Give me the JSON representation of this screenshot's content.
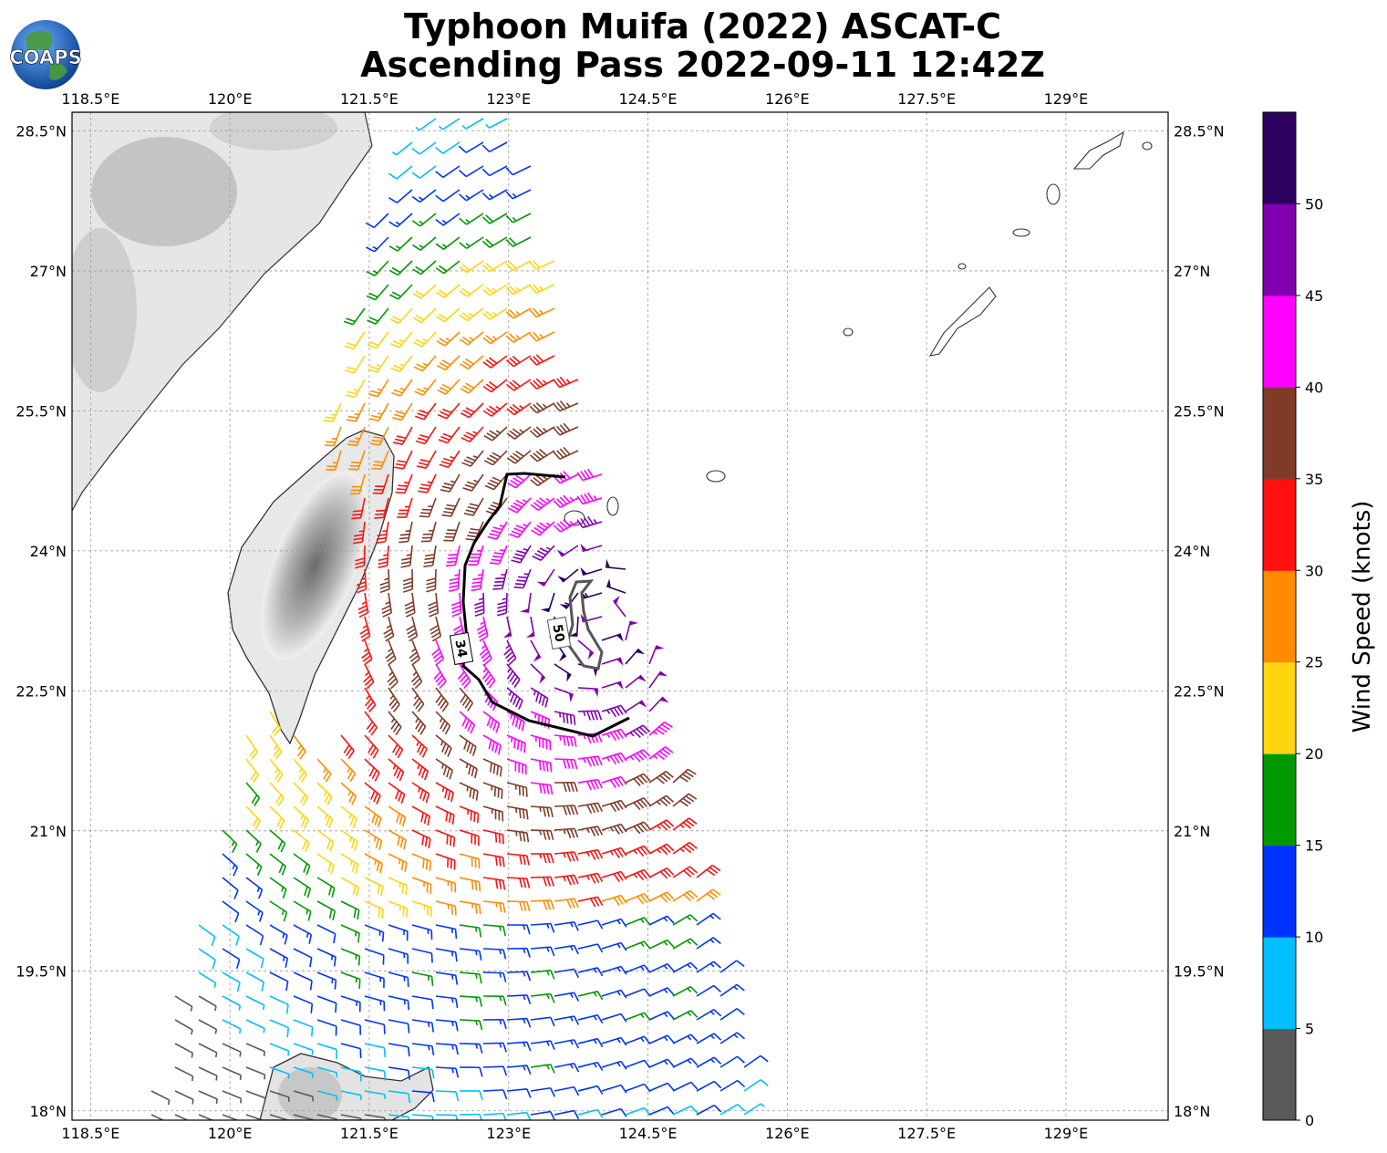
{
  "title": {
    "line1": "Typhoon Muifa (2022) ASCAT-C",
    "line2": "Ascending Pass 2022-09-11 12:42Z"
  },
  "logo": {
    "text": "COAPS",
    "icon": "globe-icon"
  },
  "map": {
    "lon_range": [
      118.3,
      130.1
    ],
    "lat_range": [
      17.9,
      28.7
    ],
    "lon_ticks": [
      "118.5°E",
      "120°E",
      "121.5°E",
      "123°E",
      "124.5°E",
      "126°E",
      "127.5°E",
      "129°E"
    ],
    "lon_tick_values": [
      118.5,
      120,
      121.5,
      123,
      124.5,
      126,
      127.5,
      129
    ],
    "lat_ticks": [
      "28.5°N",
      "27°N",
      "25.5°N",
      "24°N",
      "22.5°N",
      "21°N",
      "19.5°N",
      "18°N"
    ],
    "lat_tick_values": [
      28.5,
      27,
      25.5,
      24,
      22.5,
      21,
      19.5,
      18
    ],
    "storm_center": {
      "lon": 124.0,
      "lat": 23.2
    }
  },
  "contours": [
    {
      "label": "34",
      "color": "#000000"
    },
    {
      "label": "50",
      "color": "#555555"
    }
  ],
  "colorbar": {
    "label": "Wind Speed (knots)",
    "ticks": [
      "0",
      "5",
      "10",
      "15",
      "20",
      "25",
      "30",
      "35",
      "40",
      "45",
      "50"
    ],
    "bins": [
      {
        "min": 0,
        "max": 5,
        "color": "#595959"
      },
      {
        "min": 5,
        "max": 10,
        "color": "#00bfff"
      },
      {
        "min": 10,
        "max": 15,
        "color": "#0033ff"
      },
      {
        "min": 15,
        "max": 20,
        "color": "#009900"
      },
      {
        "min": 20,
        "max": 25,
        "color": "#ffd510"
      },
      {
        "min": 25,
        "max": 30,
        "color": "#ff8c00"
      },
      {
        "min": 30,
        "max": 35,
        "color": "#ff1010"
      },
      {
        "min": 35,
        "max": 40,
        "color": "#7f3b28"
      },
      {
        "min": 40,
        "max": 45,
        "color": "#ff00ff"
      },
      {
        "min": 45,
        "max": 50,
        "color": "#8000b0"
      },
      {
        "min": 50,
        "max": 55,
        "color": "#2d0060"
      }
    ]
  }
}
